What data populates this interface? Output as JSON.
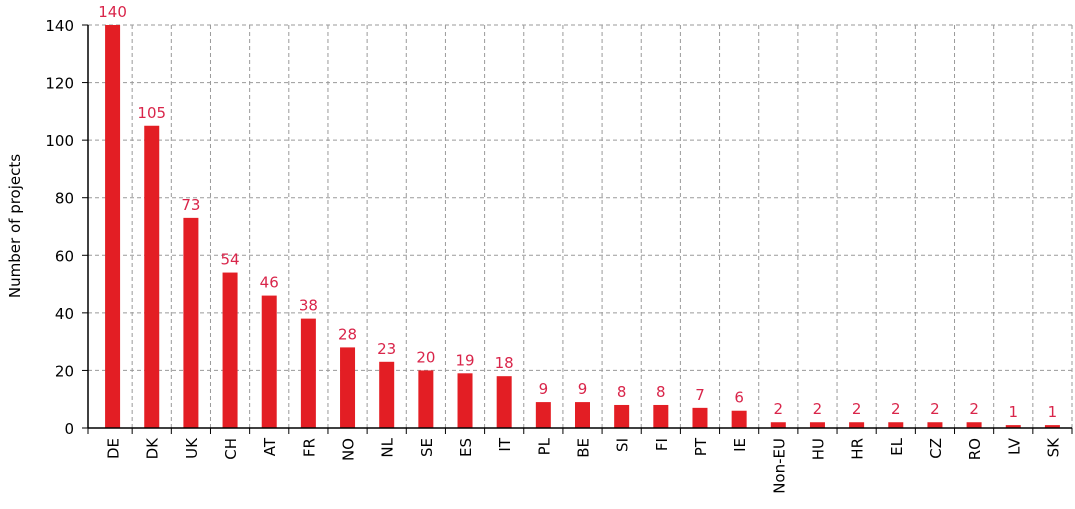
{
  "chart_data": {
    "type": "bar",
    "y_label": "Number of projects",
    "categories": [
      "DE",
      "DK",
      "UK",
      "CH",
      "AT",
      "FR",
      "NO",
      "NL",
      "SE",
      "ES",
      "IT",
      "PL",
      "BE",
      "SI",
      "FI",
      "PT",
      "IE",
      "Non-EU",
      "HU",
      "HR",
      "EL",
      "CZ",
      "RO",
      "LV",
      "SK"
    ],
    "values": [
      140,
      105,
      73,
      54,
      46,
      38,
      28,
      23,
      20,
      19,
      18,
      9,
      9,
      8,
      8,
      7,
      6,
      2,
      2,
      2,
      2,
      2,
      2,
      1,
      1
    ],
    "color": "#e31e24",
    "ylim": [
      0,
      140
    ],
    "yticks": [
      0,
      20,
      40,
      60,
      80,
      100,
      120,
      140
    ],
    "grid": true
  }
}
